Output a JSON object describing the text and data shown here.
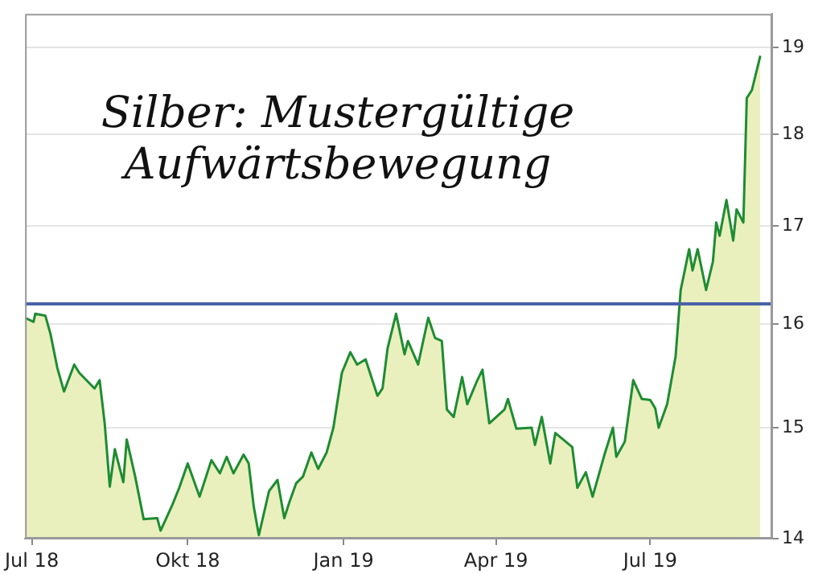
{
  "chart_data": {
    "type": "area",
    "title": "Silber: Mustergültige Aufwärtsbewegung",
    "x": [
      "2018-06-27",
      "2018-07-02",
      "2018-07-03",
      "2018-07-09",
      "2018-07-12",
      "2018-07-16",
      "2018-07-20",
      "2018-07-26",
      "2018-07-29",
      "2018-08-07",
      "2018-08-10",
      "2018-08-13",
      "2018-08-16",
      "2018-08-19",
      "2018-08-24",
      "2018-08-26",
      "2018-08-31",
      "2018-09-05",
      "2018-09-13",
      "2018-09-15",
      "2018-09-22",
      "2018-09-26",
      "2018-10-01",
      "2018-10-08",
      "2018-10-15",
      "2018-10-20",
      "2018-10-24",
      "2018-10-28",
      "2018-11-03",
      "2018-11-06",
      "2018-11-09",
      "2018-11-12",
      "2018-11-18",
      "2018-11-23",
      "2018-11-27",
      "2018-11-30",
      "2018-12-04",
      "2018-12-08",
      "2018-12-13",
      "2018-12-17",
      "2018-12-22",
      "2018-12-26",
      "2018-12-31",
      "2019-01-05",
      "2019-01-09",
      "2019-01-14",
      "2019-01-21",
      "2019-01-24",
      "2019-01-27",
      "2019-02-01",
      "2019-02-06",
      "2019-02-08",
      "2019-02-14",
      "2019-02-17",
      "2019-02-20",
      "2019-02-24",
      "2019-02-28",
      "2019-03-03",
      "2019-03-07",
      "2019-03-12",
      "2019-03-15",
      "2019-03-21",
      "2019-03-24",
      "2019-03-28",
      "2019-04-06",
      "2019-04-08",
      "2019-04-13",
      "2019-04-22",
      "2019-04-24",
      "2019-04-28",
      "2019-05-03",
      "2019-05-06",
      "2019-05-16",
      "2019-05-19",
      "2019-05-24",
      "2019-05-28",
      "2019-06-04",
      "2019-06-09",
      "2019-06-11",
      "2019-06-16",
      "2019-06-21",
      "2019-06-26",
      "2019-07-01",
      "2019-07-04",
      "2019-07-06",
      "2019-07-11",
      "2019-07-16",
      "2019-07-19",
      "2019-07-24",
      "2019-07-26",
      "2019-07-29",
      "2019-08-03",
      "2019-08-07",
      "2019-08-09",
      "2019-08-11",
      "2019-08-15",
      "2019-08-19",
      "2019-08-21",
      "2019-08-25",
      "2019-08-27",
      "2019-08-30",
      "2019-09-04"
    ],
    "series": [
      {
        "color": "#1e8c32",
        "values": [
          16.06,
          16.02,
          16.1,
          16.08,
          15.9,
          15.57,
          15.34,
          15.6,
          15.52,
          15.37,
          15.45,
          15.04,
          14.46,
          14.8,
          14.5,
          14.89,
          14.55,
          14.17,
          14.18,
          14.07,
          14.3,
          14.45,
          14.67,
          14.37,
          14.7,
          14.58,
          14.73,
          14.58,
          14.75,
          14.67,
          14.28,
          14.03,
          14.42,
          14.52,
          14.18,
          14.32,
          14.49,
          14.55,
          14.77,
          14.62,
          14.77,
          15.0,
          15.52,
          15.72,
          15.6,
          15.65,
          15.3,
          15.37,
          15.76,
          16.1,
          15.7,
          15.83,
          15.6,
          15.83,
          16.06,
          15.86,
          15.83,
          15.17,
          15.1,
          15.48,
          15.22,
          15.45,
          15.55,
          15.04,
          15.17,
          15.27,
          14.99,
          15.0,
          14.84,
          15.1,
          14.67,
          14.95,
          14.82,
          14.45,
          14.59,
          14.37,
          14.75,
          15.0,
          14.73,
          14.87,
          15.45,
          15.27,
          15.26,
          15.18,
          15.0,
          15.22,
          15.68,
          16.34,
          16.76,
          16.54,
          16.76,
          16.34,
          16.63,
          17.04,
          16.9,
          17.28,
          16.85,
          17.18,
          17.04,
          18.41,
          18.5,
          18.9
        ]
      }
    ],
    "xlim": [
      "2018-06-27",
      "2019-09-11"
    ],
    "xticks": [
      {
        "value": "2018-07-01",
        "label": "Jul 18"
      },
      {
        "value": "2018-10-01",
        "label": "Okt 18"
      },
      {
        "value": "2019-01-01",
        "label": "Jan 19"
      },
      {
        "value": "2019-04-01",
        "label": "Apr 19"
      },
      {
        "value": "2019-07-01",
        "label": "Jul 19"
      }
    ],
    "ylim": [
      14,
      19.4
    ],
    "yticks": [
      14,
      15,
      16,
      17,
      18,
      19
    ],
    "log": "y",
    "grid": "y",
    "legend": false,
    "marker": "none",
    "line_style": "solid",
    "ref_lines": [
      {
        "axis": "y",
        "value": 16.2,
        "color": "#4a62a8"
      }
    ]
  }
}
